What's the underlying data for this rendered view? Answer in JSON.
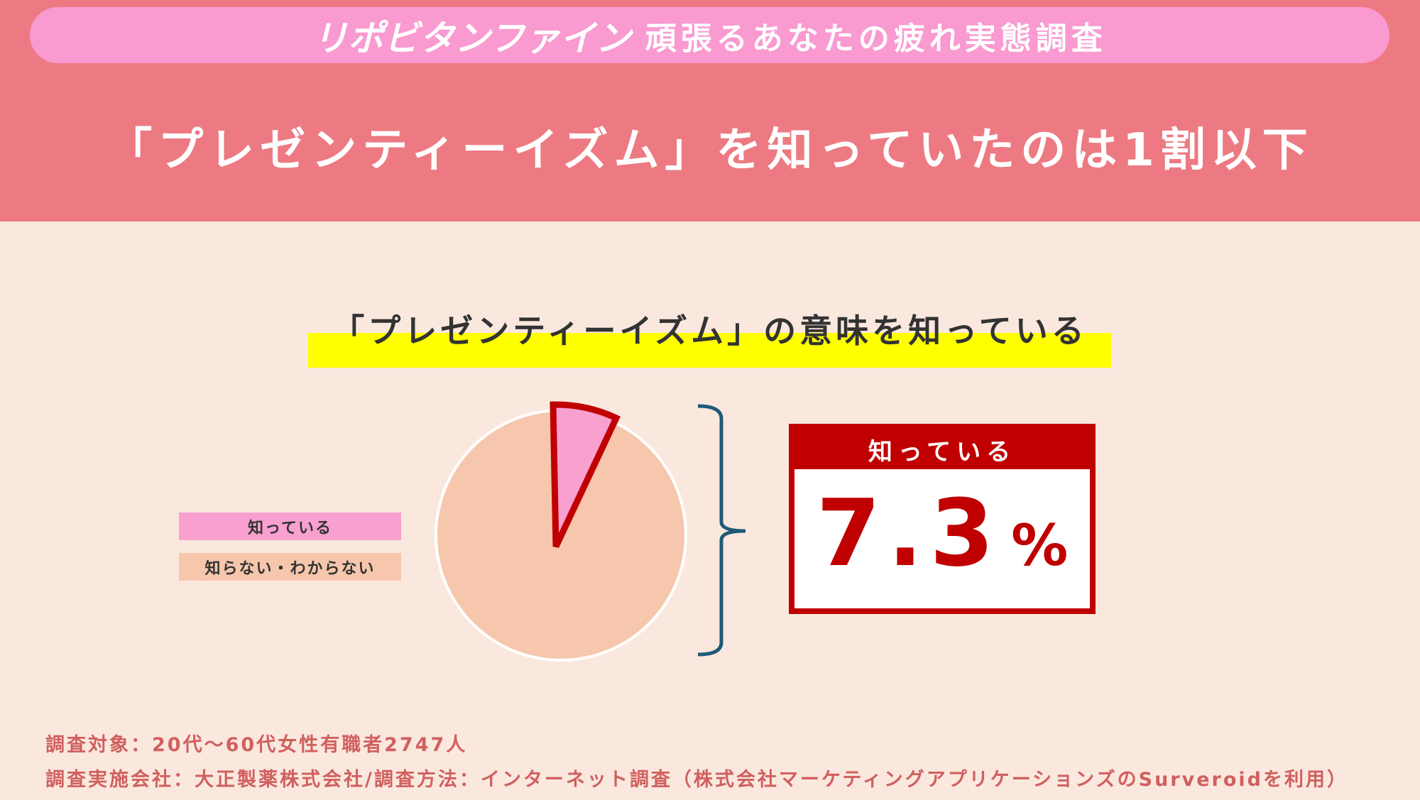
{
  "header": {
    "brand": "リポビタンファイン",
    "survey_title": "頑張るあなたの疲れ実態調査",
    "headline": "「プレゼンティーイズム」を知っていたのは1割以下"
  },
  "chart_data": {
    "type": "pie",
    "title": "「プレゼンティーイズム」の意味を知っている",
    "categories": [
      "知っている",
      "知らない・わからない"
    ],
    "values": [
      7.3,
      92.7
    ],
    "colors": [
      "#f8a0d0",
      "#f6c7ad"
    ],
    "highlight_outline": "#c00000",
    "legend_placement": "left"
  },
  "callout": {
    "label": "知っている",
    "value": "7.3",
    "unit": "%"
  },
  "footer": {
    "line1": "調査対象：20代～60代女性有職者2747人",
    "line2": "調査実施会社：大正製薬株式会社/調査方法：インターネット調査（株式会社マーケティングアプリケーションズのSurveroidを利用）"
  }
}
